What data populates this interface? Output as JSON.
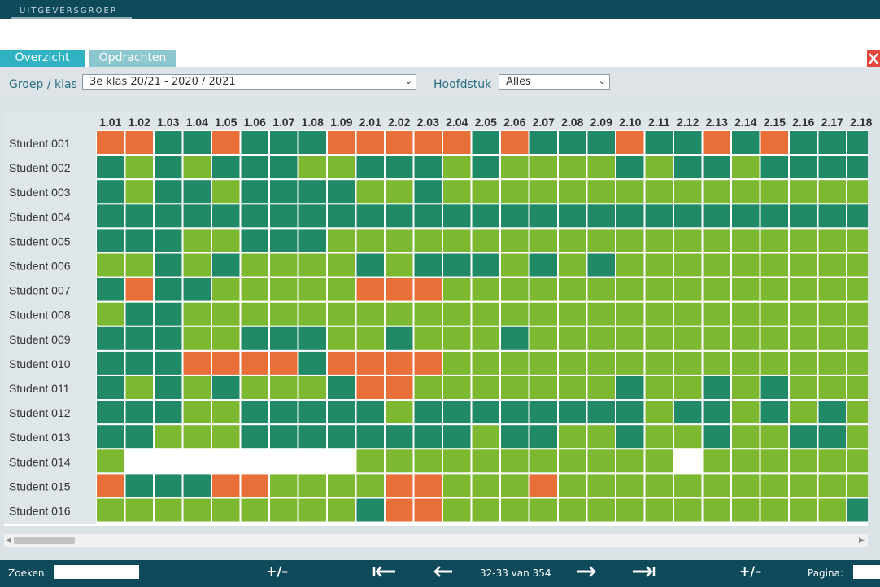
{
  "header": {
    "brand": "UITGEVERSGROEP"
  },
  "tabs": [
    {
      "label": "Overzicht"
    },
    {
      "label": "Opdrachten"
    }
  ],
  "filters": {
    "groep_label": "Groep / klas",
    "groep_value": "3e klas 20/21 - 2020 / 2021",
    "hoofdstuk_label": "Hoofdstuk",
    "hoofdstuk_value": "Alles"
  },
  "colors": {
    "dark": "#1f8a65",
    "light": "#7db831",
    "orange": "#e87038",
    "empty": "#ffffff"
  },
  "legend_codes": "D = dark green, L = light green, O = orange, W = white (no data)",
  "grid": {
    "columns": [
      "1.01",
      "1.02",
      "1.03",
      "1.04",
      "1.05",
      "1.06",
      "1.07",
      "1.08",
      "1.09",
      "2.01",
      "2.02",
      "2.03",
      "2.04",
      "2.05",
      "2.06",
      "2.07",
      "2.08",
      "2.09",
      "2.10",
      "2.11",
      "2.12",
      "2.13",
      "2.14",
      "2.15",
      "2.16",
      "2.17",
      "2.18"
    ],
    "rows": [
      {
        "student": "Student 001",
        "cells": "OODDODDDOOOOODODDDODDODODDD"
      },
      {
        "student": "Student 002",
        "cells": "DLDLDDDLLDDDLDLLLLDLDDLDDDD"
      },
      {
        "student": "Student 003",
        "cells": "DLDDLDDDDLLDLLLLLLLLLLLLLLL"
      },
      {
        "student": "Student 004",
        "cells": "DDDDDDDDDDDDDDDDDDDDDDDDDDD"
      },
      {
        "student": "Student 005",
        "cells": "DDDLLDDDLLLLLLLLLLLLLLLLLLL"
      },
      {
        "student": "Student 006",
        "cells": "LLDLDLLLLDLDDDLDLDLLLLLLLLL"
      },
      {
        "student": "Student 007",
        "cells": "DODDLLLLLOOOLLLLLLLLLLLLLLL"
      },
      {
        "student": "Student 008",
        "cells": "LDDLLLLLLLLLLLLLLLLLLLLLLLL"
      },
      {
        "student": "Student 009",
        "cells": "DDDLLDDDLLDLLLDLLLLLLLLLLLL"
      },
      {
        "student": "Student 010",
        "cells": "DDDOOOODOOOOLLLLLLLLLLLLLLL"
      },
      {
        "student": "Student 011",
        "cells": "DLDLDLLLDOOLLLLLLLDLLDLDLLL"
      },
      {
        "student": "Student 012",
        "cells": "DDDLLDDDDDLDDDDDDDDLDDLDLDL"
      },
      {
        "student": "Student 013",
        "cells": "DDLLLDDDDDDDDLDDLLDLLDLLDDL"
      },
      {
        "student": "Student 014",
        "cells": "LWWWWWWWWLLLLLLLLLLLWLLLLLL"
      },
      {
        "student": "Student 015",
        "cells": "ODDDOOLLLLOOLLLOLLLLLLLLLLL"
      },
      {
        "student": "Student 016",
        "cells": "LLLLLLLLLDOOLLLLLLLLLLLLLLD"
      }
    ]
  },
  "footer": {
    "search_label": "Zoeken:",
    "zoom_left": "+/–",
    "first": "⟵",
    "prev": "⟵",
    "page_info": "32-33 van 354",
    "next": "⟶",
    "last": "⟶",
    "zoom_right": "+/–",
    "page_label": "Pagina:"
  }
}
